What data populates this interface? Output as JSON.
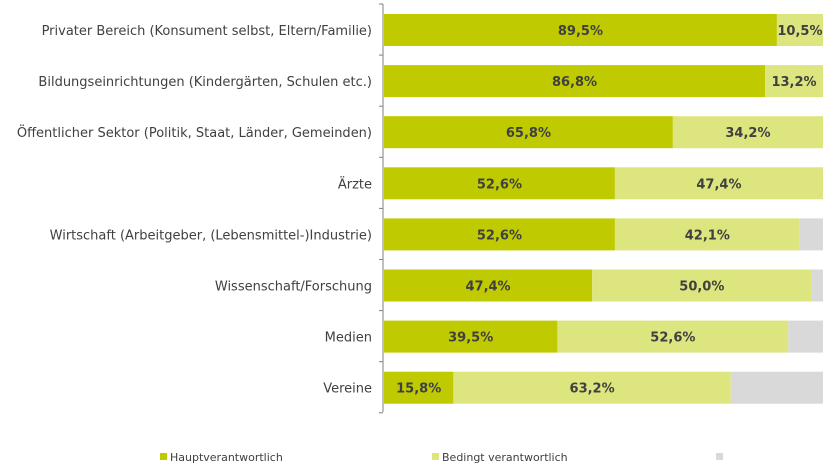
{
  "chart_data": {
    "type": "bar",
    "orientation": "horizontal",
    "stacked": "100%",
    "categories": [
      "Privater Bereich (Konsument selbst, Eltern/Familie)",
      "Bildungseinrichtungen (Kindergärten, Schulen etc.)",
      "Öffentlicher Sektor (Politik, Staat, Länder, Gemeinden)",
      "Ärzte",
      "Wirtschaft (Arbeitgeber, (Lebensmittel-)Industrie)",
      "Wissenschaft/Forschung",
      "Medien",
      "Vereine"
    ],
    "series": [
      {
        "name": "Hauptverantwortlich",
        "color": "#bfca00",
        "values": [
          89.5,
          86.8,
          65.8,
          52.6,
          52.6,
          47.4,
          39.5,
          15.8
        ],
        "labels": [
          "89,5%",
          "86,8%",
          "65,8%",
          "52,6%",
          "52,6%",
          "47,4%",
          "39,5%",
          "15,8%"
        ]
      },
      {
        "name": "Bedingt verantwortlich",
        "color": "#dde57e",
        "values": [
          10.5,
          13.2,
          34.2,
          47.4,
          42.1,
          50.0,
          52.6,
          63.2
        ],
        "labels": [
          "10,5%",
          "13,2%",
          "34,2%",
          "47,4%",
          "42,1%",
          "50,0%",
          "52,6%",
          "63,2%"
        ]
      },
      {
        "name": "",
        "color": "#d9d9d9",
        "values": [
          0.0,
          0.0,
          0.0,
          0.0,
          5.3,
          2.6,
          7.9,
          21.0
        ],
        "labels": [
          "",
          "",
          "",
          "",
          "",
          "",
          "",
          ""
        ]
      }
    ],
    "xlim": [
      0,
      100
    ],
    "grid": false,
    "legend_position": "bottom"
  }
}
